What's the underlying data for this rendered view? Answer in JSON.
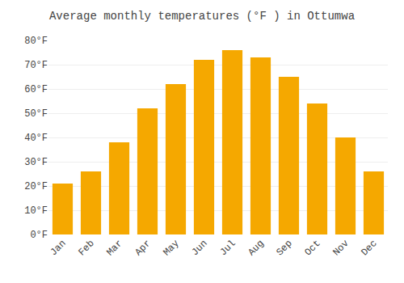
{
  "chart_data": {
    "type": "bar",
    "title": "Average monthly temperatures (°F ) in Ottumwa",
    "categories": [
      "Jan",
      "Feb",
      "Mar",
      "Apr",
      "May",
      "Jun",
      "Jul",
      "Aug",
      "Sep",
      "Oct",
      "Nov",
      "Dec"
    ],
    "values": [
      21,
      26,
      38,
      52,
      62,
      72,
      76,
      73,
      65,
      54,
      40,
      26
    ],
    "color": "#F5A800",
    "ylim": [
      0,
      80
    ],
    "yticks": [
      {
        "value": 0,
        "label": "0°F"
      },
      {
        "value": 10,
        "label": "10°F"
      },
      {
        "value": 20,
        "label": "20°F"
      },
      {
        "value": 30,
        "label": "30°F"
      },
      {
        "value": 40,
        "label": "40°F"
      },
      {
        "value": 50,
        "label": "50°F"
      },
      {
        "value": 60,
        "label": "60°F"
      },
      {
        "value": 70,
        "label": "70°F"
      },
      {
        "value": 80,
        "label": "80°F"
      }
    ],
    "grid": true
  }
}
